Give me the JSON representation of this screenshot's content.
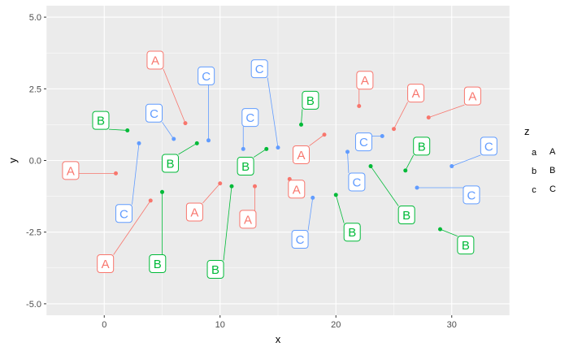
{
  "chart_data": {
    "type": "scatter",
    "xlabel": "x",
    "ylabel": "y",
    "xlim": [
      -5,
      35
    ],
    "ylim": [
      -5.4,
      5.4
    ],
    "xticks": [
      0,
      10,
      20,
      30
    ],
    "yticks": [
      -5.0,
      -2.5,
      0.0,
      2.5,
      5.0
    ],
    "xtick_labels": [
      "0",
      "10",
      "20",
      "30"
    ],
    "ytick_labels": [
      "-5.0",
      "-2.5",
      "0.0",
      "2.5",
      "5.0"
    ],
    "grid": true,
    "legend": {
      "title": "z",
      "placement": "right",
      "entries": [
        {
          "key": "a",
          "label": "A",
          "color": "#F8766D"
        },
        {
          "key": "b",
          "label": "B",
          "color": "#00BA38"
        },
        {
          "key": "c",
          "label": "C",
          "color": "#619CFF"
        }
      ]
    },
    "panel_color": "#EBEBEB",
    "points": [
      {
        "x": 1,
        "y": -0.45,
        "group": "a",
        "label": "A",
        "lx": -2.9,
        "ly": -0.35
      },
      {
        "x": 4,
        "y": -1.4,
        "group": "a",
        "label": "A",
        "lx": 0.1,
        "ly": -3.6
      },
      {
        "x": 7,
        "y": 1.3,
        "group": "a",
        "label": "A",
        "lx": 4.4,
        "ly": 3.5
      },
      {
        "x": 10,
        "y": -0.8,
        "group": "a",
        "label": "A",
        "lx": 7.8,
        "ly": -1.8
      },
      {
        "x": 13,
        "y": -0.9,
        "group": "a",
        "label": "A",
        "lx": 12.4,
        "ly": -2.05
      },
      {
        "x": 16,
        "y": -0.65,
        "group": "a",
        "label": "A",
        "lx": 16.6,
        "ly": -1.0
      },
      {
        "x": 19,
        "y": 0.9,
        "group": "a",
        "label": "A",
        "lx": 17.0,
        "ly": 0.2
      },
      {
        "x": 22,
        "y": 1.9,
        "group": "a",
        "label": "A",
        "lx": 22.5,
        "ly": 2.8
      },
      {
        "x": 25,
        "y": 1.1,
        "group": "a",
        "label": "A",
        "lx": 26.9,
        "ly": 2.35
      },
      {
        "x": 28,
        "y": 1.5,
        "group": "a",
        "label": "A",
        "lx": 31.8,
        "ly": 2.25
      },
      {
        "x": 2,
        "y": 1.05,
        "group": "b",
        "label": "B",
        "lx": -0.3,
        "ly": 1.4
      },
      {
        "x": 5,
        "y": -1.1,
        "group": "b",
        "label": "B",
        "lx": 4.6,
        "ly": -3.6
      },
      {
        "x": 8,
        "y": 0.6,
        "group": "b",
        "label": "B",
        "lx": 5.7,
        "ly": -0.1
      },
      {
        "x": 11,
        "y": -0.9,
        "group": "b",
        "label": "B",
        "lx": 9.6,
        "ly": -3.8
      },
      {
        "x": 14,
        "y": 0.4,
        "group": "b",
        "label": "B",
        "lx": 12.2,
        "ly": -0.2
      },
      {
        "x": 17,
        "y": 1.25,
        "group": "b",
        "label": "B",
        "lx": 17.8,
        "ly": 2.1
      },
      {
        "x": 20,
        "y": -1.2,
        "group": "b",
        "label": "B",
        "lx": 21.4,
        "ly": -2.5
      },
      {
        "x": 23,
        "y": -0.2,
        "group": "b",
        "label": "B",
        "lx": 26.1,
        "ly": -1.9
      },
      {
        "x": 26,
        "y": -0.35,
        "group": "b",
        "label": "B",
        "lx": 27.4,
        "ly": 0.5
      },
      {
        "x": 29,
        "y": -2.4,
        "group": "b",
        "label": "B",
        "lx": 31.2,
        "ly": -2.95
      },
      {
        "x": 3,
        "y": 0.6,
        "group": "c",
        "label": "C",
        "lx": 1.7,
        "ly": -1.85
      },
      {
        "x": 6,
        "y": 0.75,
        "group": "c",
        "label": "C",
        "lx": 4.3,
        "ly": 1.65
      },
      {
        "x": 9,
        "y": 0.7,
        "group": "c",
        "label": "C",
        "lx": 8.8,
        "ly": 2.95
      },
      {
        "x": 12,
        "y": 0.4,
        "group": "c",
        "label": "C",
        "lx": 12.6,
        "ly": 1.5
      },
      {
        "x": 15,
        "y": 0.45,
        "group": "c",
        "label": "C",
        "lx": 13.4,
        "ly": 3.2
      },
      {
        "x": 18,
        "y": -1.3,
        "group": "c",
        "label": "C",
        "lx": 16.9,
        "ly": -2.75
      },
      {
        "x": 21,
        "y": 0.3,
        "group": "c",
        "label": "C",
        "lx": 21.8,
        "ly": -0.75
      },
      {
        "x": 24,
        "y": 0.85,
        "group": "c",
        "label": "C",
        "lx": 22.4,
        "ly": 0.65
      },
      {
        "x": 27,
        "y": -0.95,
        "group": "c",
        "label": "C",
        "lx": 31.7,
        "ly": -1.2
      },
      {
        "x": 30,
        "y": -0.2,
        "group": "c",
        "label": "C",
        "lx": 33.2,
        "ly": 0.5
      }
    ]
  }
}
